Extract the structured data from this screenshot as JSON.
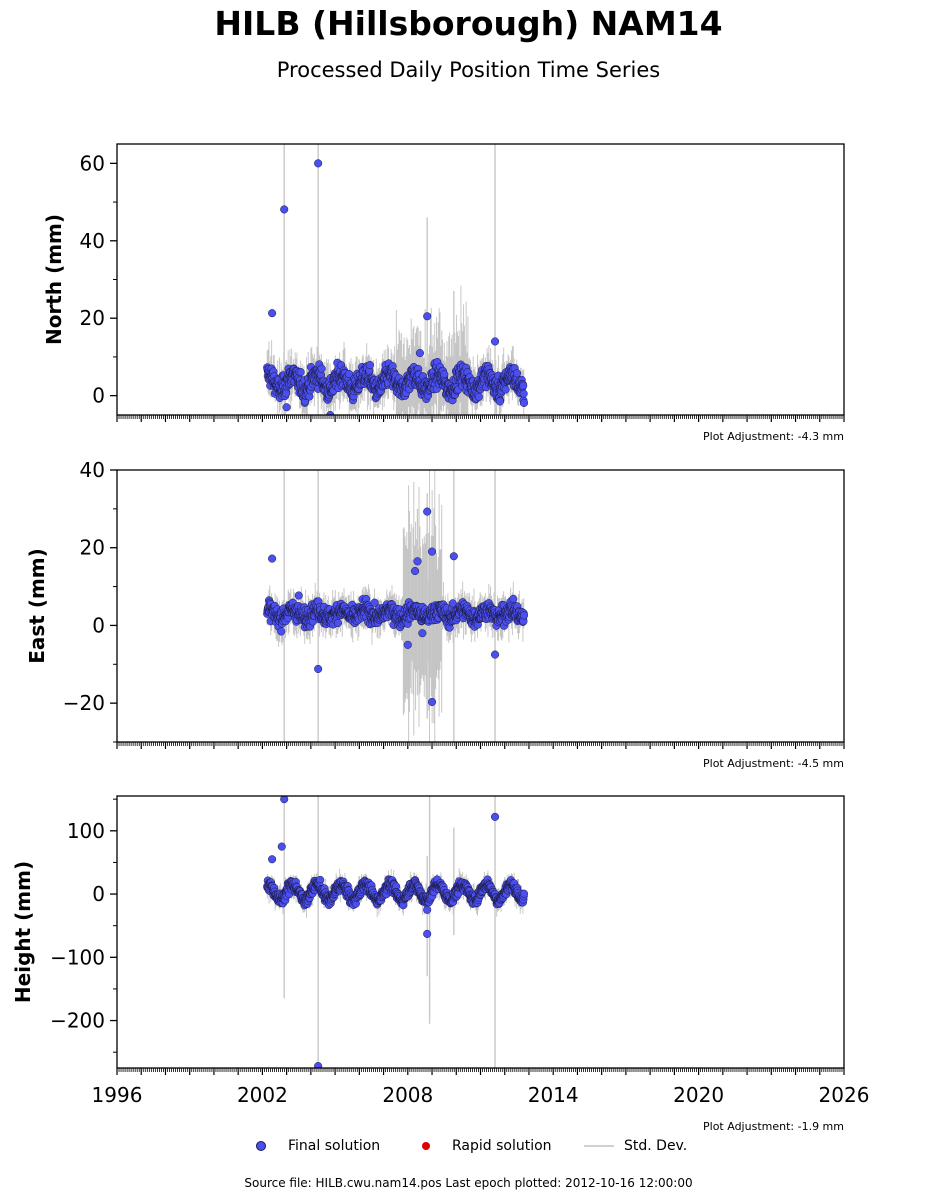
{
  "title": "HILB (Hillsborough) NAM14",
  "subtitle": "Processed Daily Position Time Series",
  "legend": {
    "final": "Final solution",
    "rapid": "Rapid solution",
    "std": "Std. Dev."
  },
  "footer": "Source file: HILB.cwu.nam14.pos  Last epoch plotted: 2012-10-16 12:00:00",
  "colors": {
    "final": "#4b4ff0",
    "rapid": "#dd0000",
    "std": "#cfcfcf"
  },
  "chart_data": [
    {
      "type": "scatter",
      "ylabel": "North (mm)",
      "xlim": [
        1996,
        2026
      ],
      "ylim": [
        -5,
        65
      ],
      "yticks": [
        0,
        20,
        40,
        60
      ],
      "adjustment": "Plot Adjustment: -4.3 mm",
      "base": 3.5,
      "amp": 2.0,
      "noise": 2.0,
      "data_range": [
        2002.2,
        2012.8
      ],
      "outliers": [
        {
          "x": 2002.4,
          "y": 21.3
        },
        {
          "x": 2002.9,
          "y": 48.1
        },
        {
          "x": 2004.3,
          "y": 60.0
        },
        {
          "x": 2008.8,
          "y": 20.5
        },
        {
          "x": 2011.6,
          "y": 14.0
        },
        {
          "x": 2003.0,
          "y": -3.0
        },
        {
          "x": 2004.8,
          "y": -5.0
        },
        {
          "x": 2008.5,
          "y": 11.0
        },
        {
          "x": 2011.8,
          "y": -1.5
        }
      ],
      "std_spikes": [
        {
          "x": 2002.9,
          "lo": -5,
          "hi": 65
        },
        {
          "x": 2004.3,
          "lo": -5,
          "hi": 65
        },
        {
          "x": 2011.6,
          "lo": -5,
          "hi": 65
        },
        {
          "x": 2008.8,
          "lo": -5,
          "hi": 46
        },
        {
          "x": 2009.9,
          "lo": -3,
          "hi": 27
        }
      ]
    },
    {
      "type": "scatter",
      "ylabel": "East (mm)",
      "xlim": [
        1996,
        2026
      ],
      "ylim": [
        -30,
        40
      ],
      "yticks": [
        -20,
        0,
        20,
        40
      ],
      "adjustment": "Plot Adjustment: -4.5 mm",
      "base": 3.0,
      "amp": 1.0,
      "noise": 1.6,
      "data_range": [
        2002.2,
        2012.8
      ],
      "outliers": [
        {
          "x": 2002.4,
          "y": 17.2
        },
        {
          "x": 2004.3,
          "y": -11.2
        },
        {
          "x": 2003.5,
          "y": 7.7
        },
        {
          "x": 2008.8,
          "y": 29.3
        },
        {
          "x": 2009.0,
          "y": 19.0
        },
        {
          "x": 2008.4,
          "y": 16.5
        },
        {
          "x": 2008.3,
          "y": 14.0
        },
        {
          "x": 2009.0,
          "y": -19.7
        },
        {
          "x": 2009.9,
          "y": 17.8
        },
        {
          "x": 2011.6,
          "y": -7.5
        },
        {
          "x": 2008.0,
          "y": -5.0
        },
        {
          "x": 2008.6,
          "y": -2.0
        }
      ],
      "std_spikes": [
        {
          "x": 2002.9,
          "lo": -30,
          "hi": 40
        },
        {
          "x": 2004.3,
          "lo": -30,
          "hi": 40
        },
        {
          "x": 2011.6,
          "lo": -30,
          "hi": 40
        },
        {
          "x": 2008.8,
          "lo": -24,
          "hi": 34
        },
        {
          "x": 2009.9,
          "lo": -30,
          "hi": 40
        },
        {
          "x": 2008.4,
          "lo": -18,
          "hi": 30
        },
        {
          "x": 2008.1,
          "lo": -16,
          "hi": 24
        }
      ]
    },
    {
      "type": "scatter",
      "ylabel": "Height (mm)",
      "xlim": [
        1996,
        2026
      ],
      "xticks": [
        1996,
        2002,
        2008,
        2014,
        2020,
        2026
      ],
      "ylim": [
        -275,
        155
      ],
      "yticks": [
        -200,
        -100,
        0,
        100
      ],
      "adjustment": "Plot Adjustment: -1.9 mm",
      "base": 3.0,
      "amp": 12.0,
      "noise": 6.0,
      "data_range": [
        2002.2,
        2012.8
      ],
      "outliers": [
        {
          "x": 2002.9,
          "y": 150
        },
        {
          "x": 2002.8,
          "y": 75
        },
        {
          "x": 2002.4,
          "y": 55
        },
        {
          "x": 2011.6,
          "y": 122
        },
        {
          "x": 2008.8,
          "y": -63
        },
        {
          "x": 2004.3,
          "y": -272
        },
        {
          "x": 2008.8,
          "y": -25
        }
      ],
      "std_spikes": [
        {
          "x": 2002.9,
          "lo": -165,
          "hi": 155
        },
        {
          "x": 2004.3,
          "lo": -275,
          "hi": 155
        },
        {
          "x": 2011.6,
          "lo": -275,
          "hi": 155
        },
        {
          "x": 2008.9,
          "lo": -205,
          "hi": 155
        },
        {
          "x": 2008.8,
          "lo": -130,
          "hi": 60
        },
        {
          "x": 2009.9,
          "lo": -65,
          "hi": 105
        }
      ]
    }
  ]
}
